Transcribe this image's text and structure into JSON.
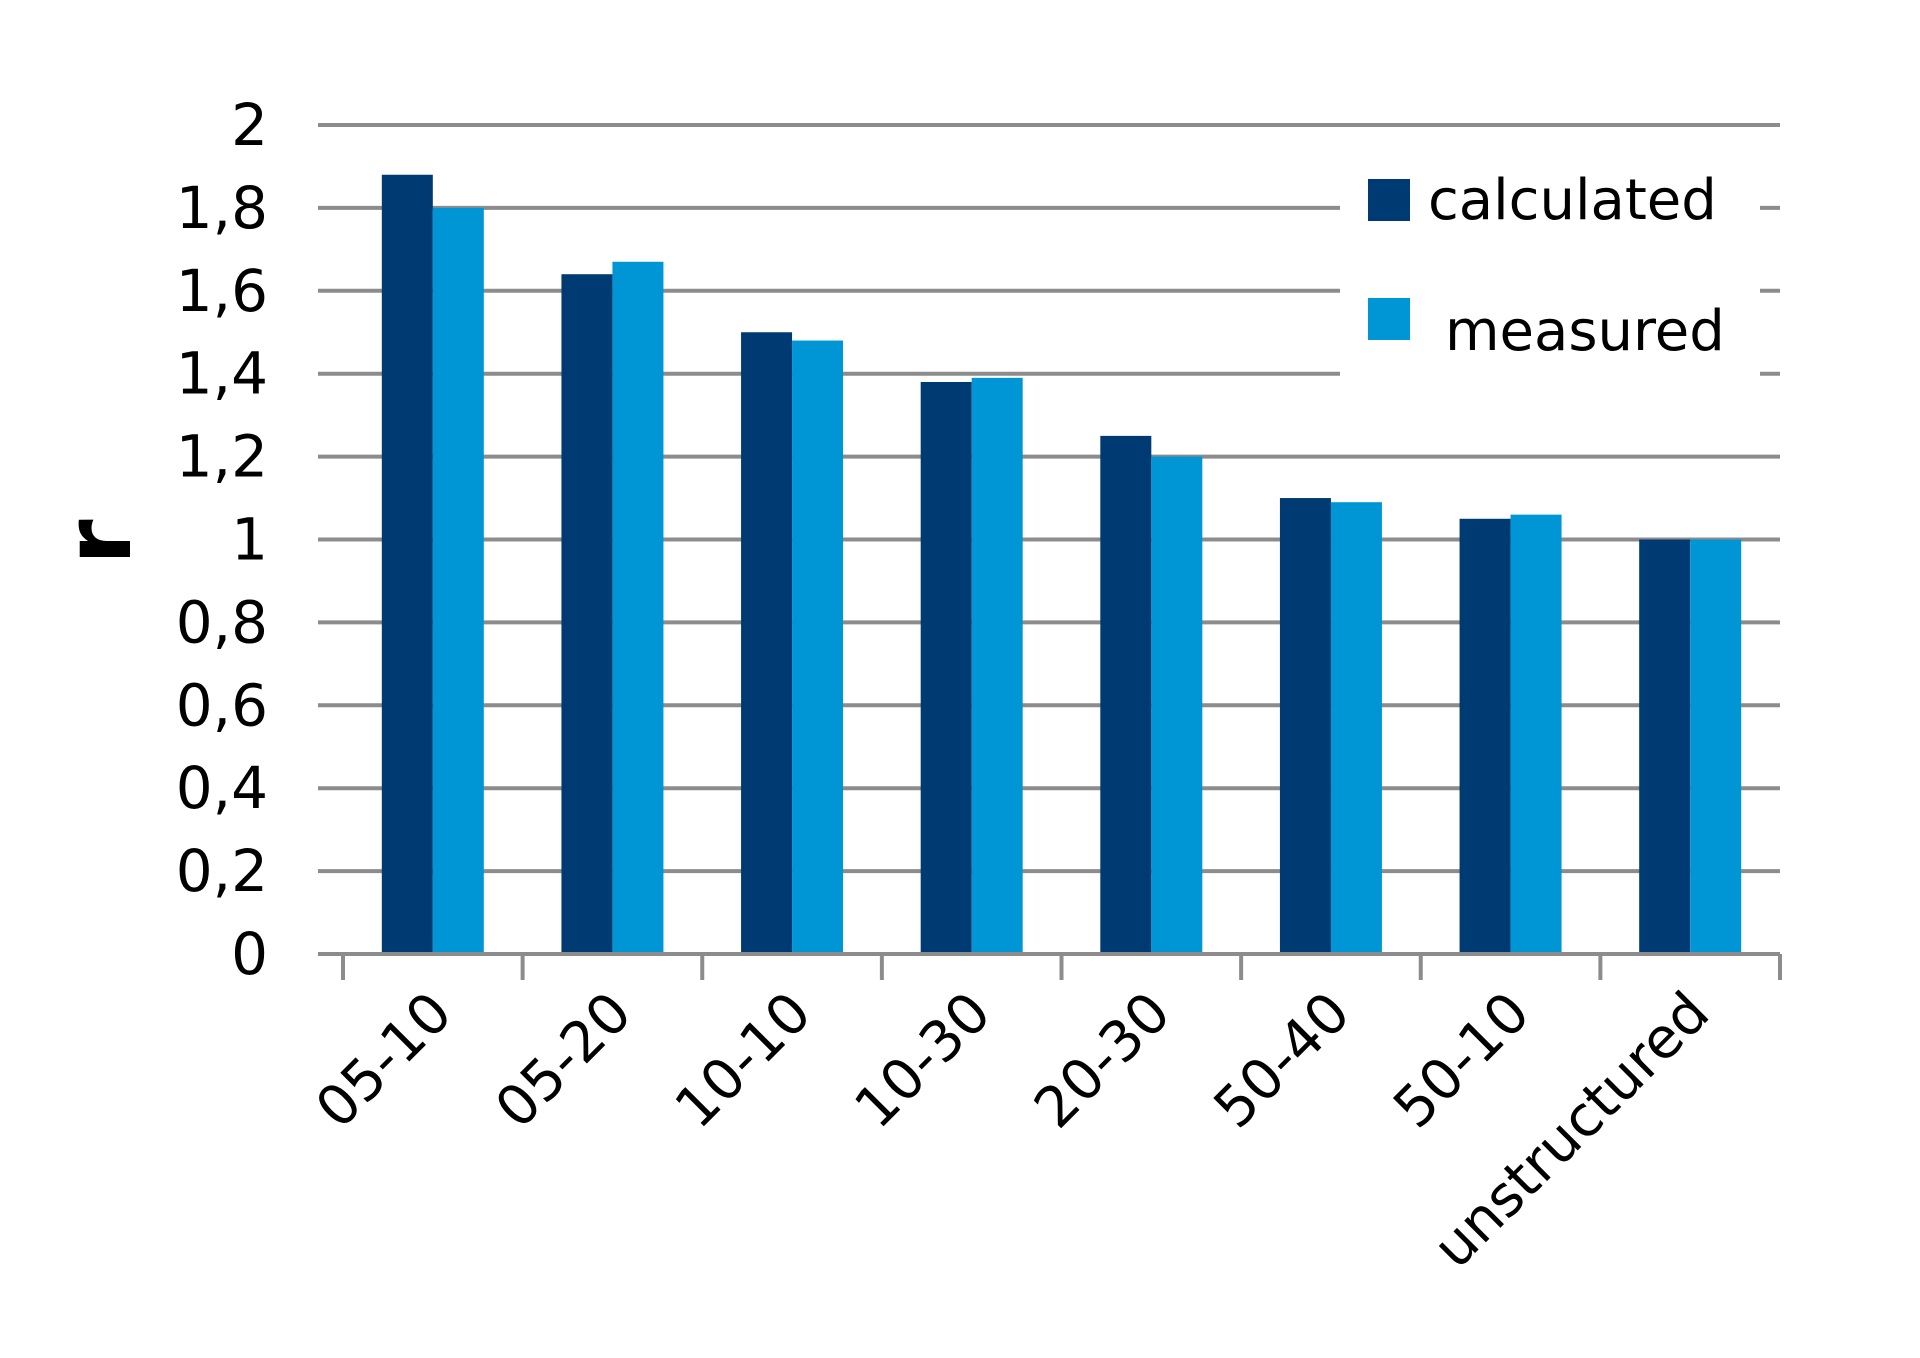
{
  "chart_data": {
    "type": "bar",
    "categories": [
      "05-10",
      "05-20",
      "10-10",
      "10-30",
      "20-30",
      "50-40",
      "50-10",
      "unstructured"
    ],
    "series": [
      {
        "name": "calculated",
        "color": "#003a72",
        "values": [
          1.88,
          1.64,
          1.5,
          1.38,
          1.25,
          1.1,
          1.05,
          1.0
        ]
      },
      {
        "name": "measured",
        "color": "#0096d6",
        "values": [
          1.8,
          1.67,
          1.48,
          1.39,
          1.2,
          1.09,
          1.06,
          1.0
        ]
      }
    ],
    "ylabel": "r",
    "xlabel": "",
    "ylim": [
      0,
      2
    ],
    "yticks": [
      {
        "value": 0,
        "label": "0"
      },
      {
        "value": 0.2,
        "label": "0,2"
      },
      {
        "value": 0.4,
        "label": "0,4"
      },
      {
        "value": 0.6,
        "label": "0,6"
      },
      {
        "value": 0.8,
        "label": "0,8"
      },
      {
        "value": 1,
        "label": "1"
      },
      {
        "value": 1.2,
        "label": "1,2"
      },
      {
        "value": 1.4,
        "label": "1,4"
      },
      {
        "value": 1.6,
        "label": "1,6"
      },
      {
        "value": 1.8,
        "label": "1,8"
      },
      {
        "value": 2,
        "label": "2"
      }
    ],
    "grid": true,
    "legend": {
      "position": "top-right"
    },
    "colors": {
      "grid": "#8c8c8c",
      "axis": "#8c8c8c"
    }
  }
}
